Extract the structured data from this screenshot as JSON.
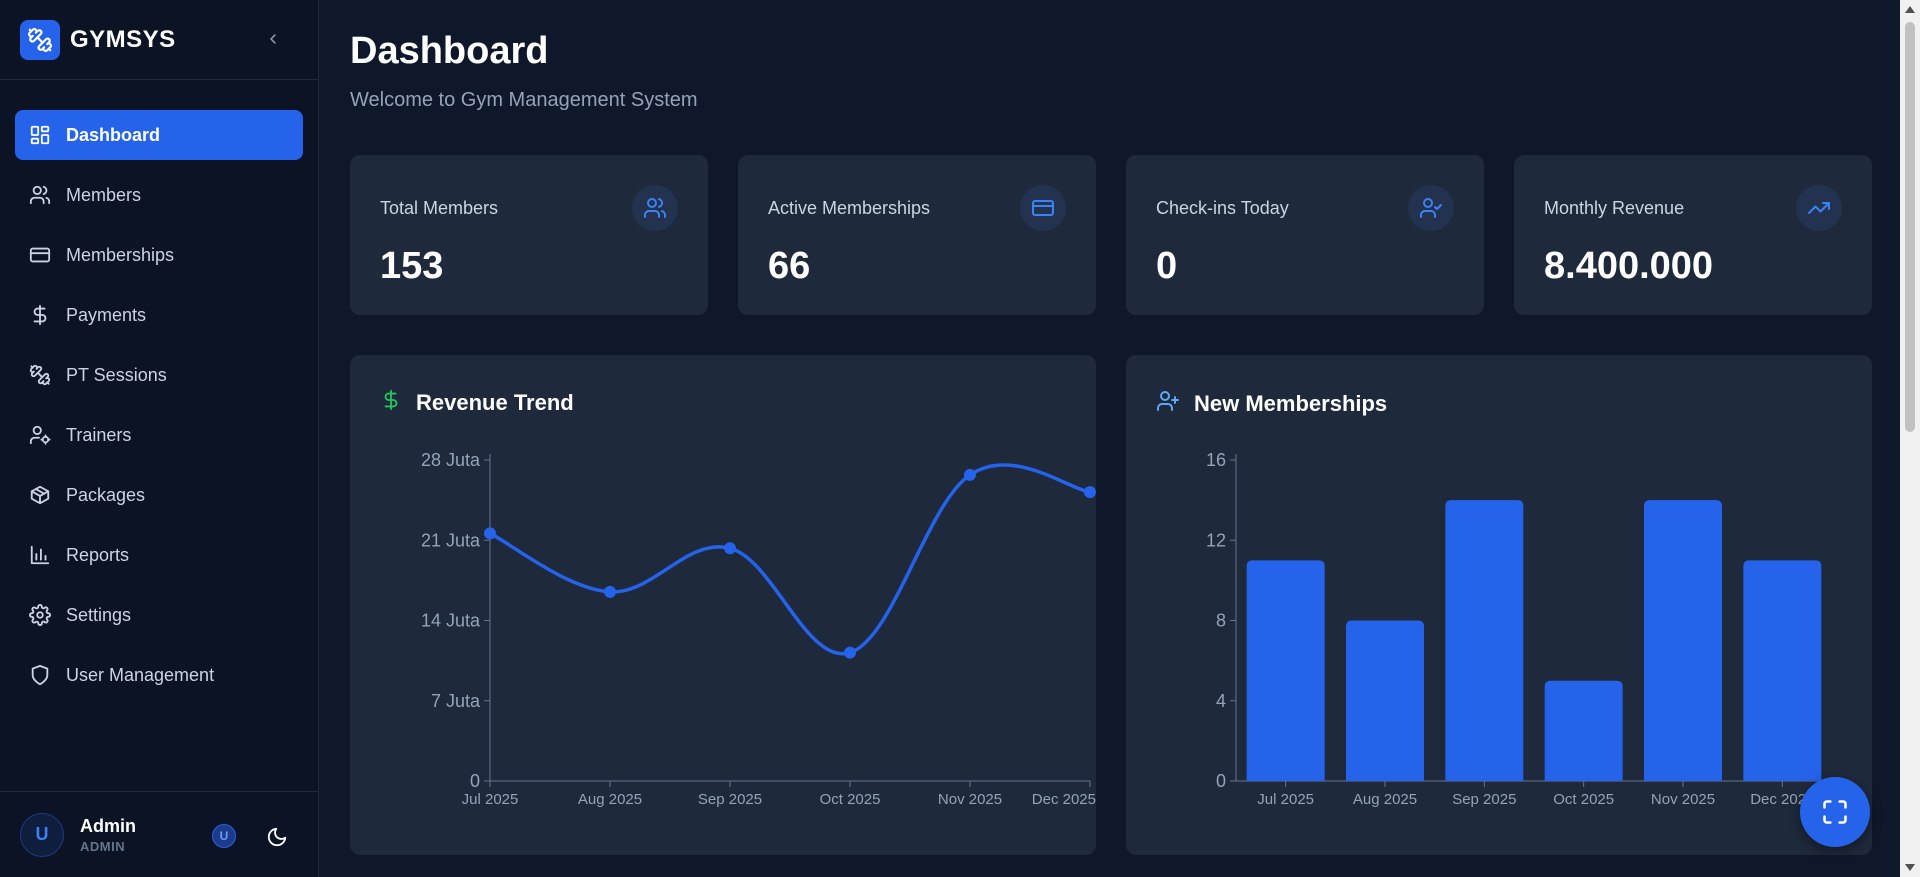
{
  "brand": {
    "name": "GYMSYS"
  },
  "sidebar": {
    "items": [
      {
        "label": "Dashboard",
        "icon": "dashboard-grid-icon",
        "active": true
      },
      {
        "label": "Members",
        "icon": "users-icon",
        "active": false
      },
      {
        "label": "Memberships",
        "icon": "credit-card-icon",
        "active": false
      },
      {
        "label": "Payments",
        "icon": "dollar-icon",
        "active": false
      },
      {
        "label": "PT Sessions",
        "icon": "dumbbell-icon",
        "active": false
      },
      {
        "label": "Trainers",
        "icon": "user-cog-icon",
        "active": false
      },
      {
        "label": "Packages",
        "icon": "package-icon",
        "active": false
      },
      {
        "label": "Reports",
        "icon": "bar-chart-icon",
        "active": false
      },
      {
        "label": "Settings",
        "icon": "gear-icon",
        "active": false
      },
      {
        "label": "User Management",
        "icon": "shield-icon",
        "active": false
      }
    ]
  },
  "user": {
    "initial": "U",
    "name": "Admin",
    "role": "ADMIN",
    "badge": "U"
  },
  "header": {
    "title": "Dashboard",
    "subtitle": "Welcome to Gym Management System"
  },
  "stats": [
    {
      "label": "Total Members",
      "value": "153",
      "icon": "users-icon"
    },
    {
      "label": "Active Memberships",
      "value": "66",
      "icon": "credit-card-icon"
    },
    {
      "label": "Check-ins Today",
      "value": "0",
      "icon": "user-check-icon"
    },
    {
      "label": "Monthly Revenue",
      "value": "8.400.000",
      "icon": "trending-up-icon"
    }
  ],
  "colors": {
    "accent": "#2563eb",
    "background": "#0f172a",
    "card": "#1e293b",
    "revenue_icon": "#22c55e"
  },
  "chart_data": [
    {
      "type": "line",
      "title": "Revenue Trend",
      "categories": [
        "Jul 2025",
        "Aug 2025",
        "Sep 2025",
        "Oct 2025",
        "Nov 2025",
        "Dec 2025"
      ],
      "values": [
        21600000,
        16500000,
        20300000,
        11200000,
        26700000,
        25200000
      ],
      "yticks": [
        0,
        7000000,
        14000000,
        21000000,
        28000000
      ],
      "ytick_labels": [
        "0",
        "7 Juta",
        "14 Juta",
        "21 Juta",
        "28 Juta"
      ],
      "ylim": [
        0,
        28000000
      ]
    },
    {
      "type": "bar",
      "title": "New Memberships",
      "categories": [
        "Jul 2025",
        "Aug 2025",
        "Sep 2025",
        "Oct 2025",
        "Nov 2025",
        "Dec 2025"
      ],
      "values": [
        11,
        8,
        14,
        5,
        14,
        11
      ],
      "yticks": [
        0,
        4,
        8,
        12,
        16
      ],
      "ytick_labels": [
        "0",
        "4",
        "8",
        "12",
        "16"
      ],
      "ylim": [
        0,
        16
      ]
    }
  ]
}
